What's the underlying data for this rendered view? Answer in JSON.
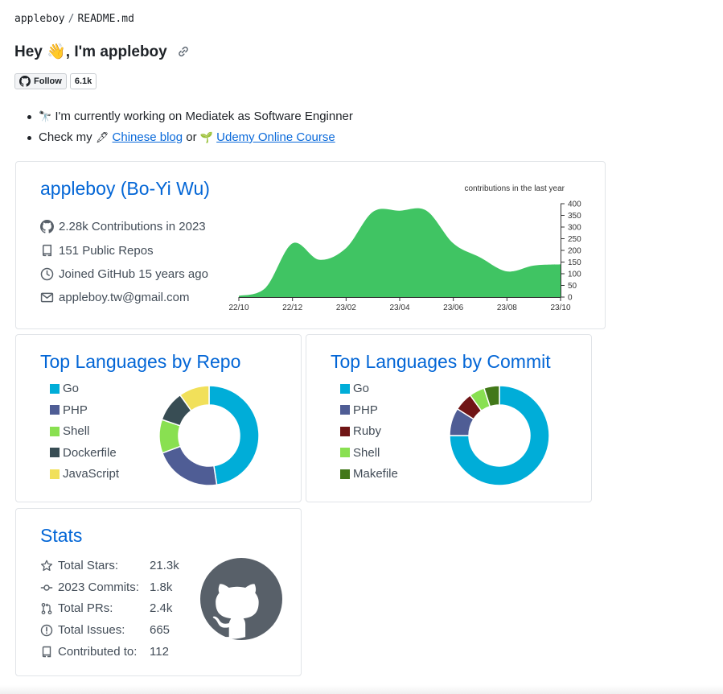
{
  "breadcrumb": {
    "owner": "appleboy",
    "separator": "/",
    "file": "README.md"
  },
  "heading": {
    "text": "Hey 👋, I'm appleboy"
  },
  "badges": {
    "follow_label": "Follow",
    "count": "6.1k"
  },
  "bullets": [
    {
      "emoji": "🔭",
      "text": "I'm currently working on Mediatek as Software Enginner"
    },
    {
      "prefix": "Check my",
      "emoji1": "🖋",
      "link1": "Chinese blog",
      "middle": "or",
      "emoji2": "🌱",
      "link2": "Udemy Online Course"
    }
  ],
  "profile": {
    "name": "appleboy (Bo-Yi Wu)",
    "contributions": "2.28k Contributions in 2023",
    "repos": "151 Public Repos",
    "joined": "Joined GitHub 15 years ago",
    "email": "appleboy.tw@gmail.com"
  },
  "colors": {
    "title": "#0366d6",
    "chart_fill": "#40c463",
    "go": "#00add8",
    "php": "#4f5d95",
    "shell": "#89e051",
    "dockerfile": "#384d54",
    "javascript": "#f1e05a",
    "ruby": "#701516",
    "makefile": "#427819"
  },
  "chart_data": [
    {
      "type": "area",
      "title": "contributions in the last year",
      "x": [
        "22/10",
        "22/11",
        "22/12",
        "23/01",
        "23/02",
        "23/03",
        "23/04",
        "23/05",
        "23/06",
        "23/07",
        "23/08",
        "23/09",
        "23/10"
      ],
      "values": [
        5,
        40,
        230,
        160,
        210,
        365,
        370,
        370,
        230,
        170,
        110,
        135,
        140
      ],
      "xticks": [
        "22/10",
        "22/12",
        "23/02",
        "23/04",
        "23/06",
        "23/08",
        "23/10"
      ],
      "yticks": [
        "0",
        "50",
        "100",
        "150",
        "200",
        "250",
        "300",
        "350",
        "400"
      ],
      "ylim": [
        0,
        400
      ]
    },
    {
      "type": "pie",
      "title": "Top Languages by Repo",
      "labels": [
        "Go",
        "PHP",
        "Shell",
        "Dockerfile",
        "JavaScript"
      ],
      "values": [
        48,
        22,
        11,
        10,
        10
      ],
      "colors": [
        "#00add8",
        "#4f5d95",
        "#89e051",
        "#384d54",
        "#f1e05a"
      ]
    },
    {
      "type": "pie",
      "title": "Top Languages by Commit",
      "labels": [
        "Go",
        "PHP",
        "Ruby",
        "Shell",
        "Makefile"
      ],
      "values": [
        75,
        9,
        6,
        5,
        5
      ],
      "colors": [
        "#00add8",
        "#4f5d95",
        "#701516",
        "#89e051",
        "#427819"
      ]
    }
  ],
  "stats": {
    "title": "Stats",
    "rows": [
      {
        "icon": "star-icon",
        "label": "Total Stars:",
        "value": "21.3k"
      },
      {
        "icon": "commit-icon",
        "label": "2023 Commits:",
        "value": "1.8k"
      },
      {
        "icon": "pull-request-icon",
        "label": "Total PRs:",
        "value": "2.4k"
      },
      {
        "icon": "issue-icon",
        "label": "Total Issues:",
        "value": "665"
      },
      {
        "icon": "repo-icon",
        "label": "Contributed to:",
        "value": "112"
      }
    ]
  }
}
